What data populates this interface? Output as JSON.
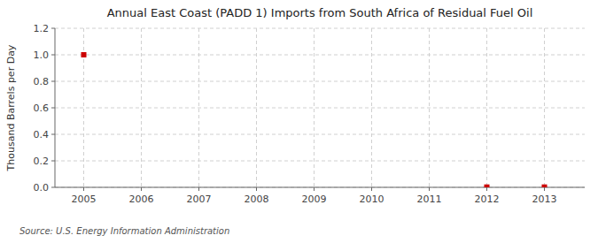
{
  "chart_data": {
    "type": "scatter",
    "title": "Annual East Coast (PADD 1) Imports from South Africa of Residual Fuel Oil",
    "y_label": "Thousand Barrels per Day",
    "source": "Source: U.S. Energy Information Administration",
    "x": [
      2005,
      2012,
      2013
    ],
    "values": [
      1.0,
      0.002,
      0.002
    ],
    "color": "#cc0000",
    "marker": "square",
    "xlim": [
      2004.5,
      2013.7
    ],
    "xticks": [
      2005,
      2006,
      2007,
      2008,
      2009,
      2010,
      2011,
      2012,
      2013
    ],
    "ylim": [
      0.0,
      1.2
    ],
    "yticks": [
      {
        "value": 0.0,
        "label": "0.0"
      },
      0.2,
      0.4,
      0.6,
      0.8,
      {
        "value": 1.0,
        "label": "1.0"
      },
      1.2
    ],
    "grid": true
  }
}
